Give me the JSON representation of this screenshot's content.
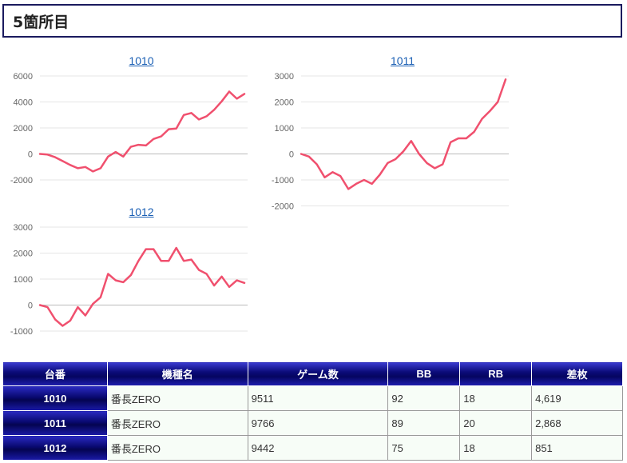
{
  "header": {
    "title": "5箇所目"
  },
  "charts": [
    {
      "title": "1010",
      "chart_data": {
        "type": "line",
        "title": "1010",
        "yticks": [
          6000,
          4000,
          2000,
          0,
          -2000
        ],
        "ylim": [
          -2000,
          6000
        ],
        "color": "#f0506e",
        "values": [
          0,
          -50,
          -250,
          -550,
          -850,
          -1100,
          -1000,
          -1350,
          -1100,
          -200,
          150,
          -200,
          550,
          700,
          650,
          1150,
          1350,
          1900,
          1950,
          3000,
          3150,
          2650,
          2900,
          3400,
          4050,
          4800,
          4250,
          4619
        ]
      }
    },
    {
      "title": "1011",
      "chart_data": {
        "type": "line",
        "title": "1011",
        "yticks": [
          3000,
          2000,
          1000,
          0,
          -1000,
          -2000
        ],
        "ylim": [
          -2000,
          3000
        ],
        "color": "#f0506e",
        "values": [
          0,
          -100,
          -400,
          -900,
          -700,
          -850,
          -1350,
          -1150,
          -1000,
          -1150,
          -800,
          -350,
          -200,
          100,
          500,
          0,
          -350,
          -550,
          -400,
          450,
          600,
          600,
          850,
          1350,
          1650,
          2000,
          2868
        ]
      }
    },
    {
      "title": "1012",
      "chart_data": {
        "type": "line",
        "title": "1012",
        "yticks": [
          3000,
          2000,
          1000,
          0,
          -1000
        ],
        "ylim": [
          -1000,
          3000
        ],
        "color": "#f0506e",
        "values": [
          0,
          -80,
          -550,
          -800,
          -600,
          -80,
          -400,
          50,
          300,
          1200,
          950,
          880,
          1150,
          1700,
          2150,
          2150,
          1700,
          1700,
          2200,
          1700,
          1750,
          1350,
          1200,
          750,
          1100,
          700,
          950,
          851
        ]
      }
    }
  ],
  "table": {
    "headers": [
      "台番",
      "機種名",
      "ゲーム数",
      "BB",
      "RB",
      "差枚"
    ],
    "rows": [
      [
        "1010",
        "番長ZERO",
        "9511",
        "92",
        "18",
        "4,619"
      ],
      [
        "1011",
        "番長ZERO",
        "9766",
        "89",
        "20",
        "2,868"
      ],
      [
        "1012",
        "番長ZERO",
        "9442",
        "75",
        "18",
        "851"
      ]
    ]
  }
}
